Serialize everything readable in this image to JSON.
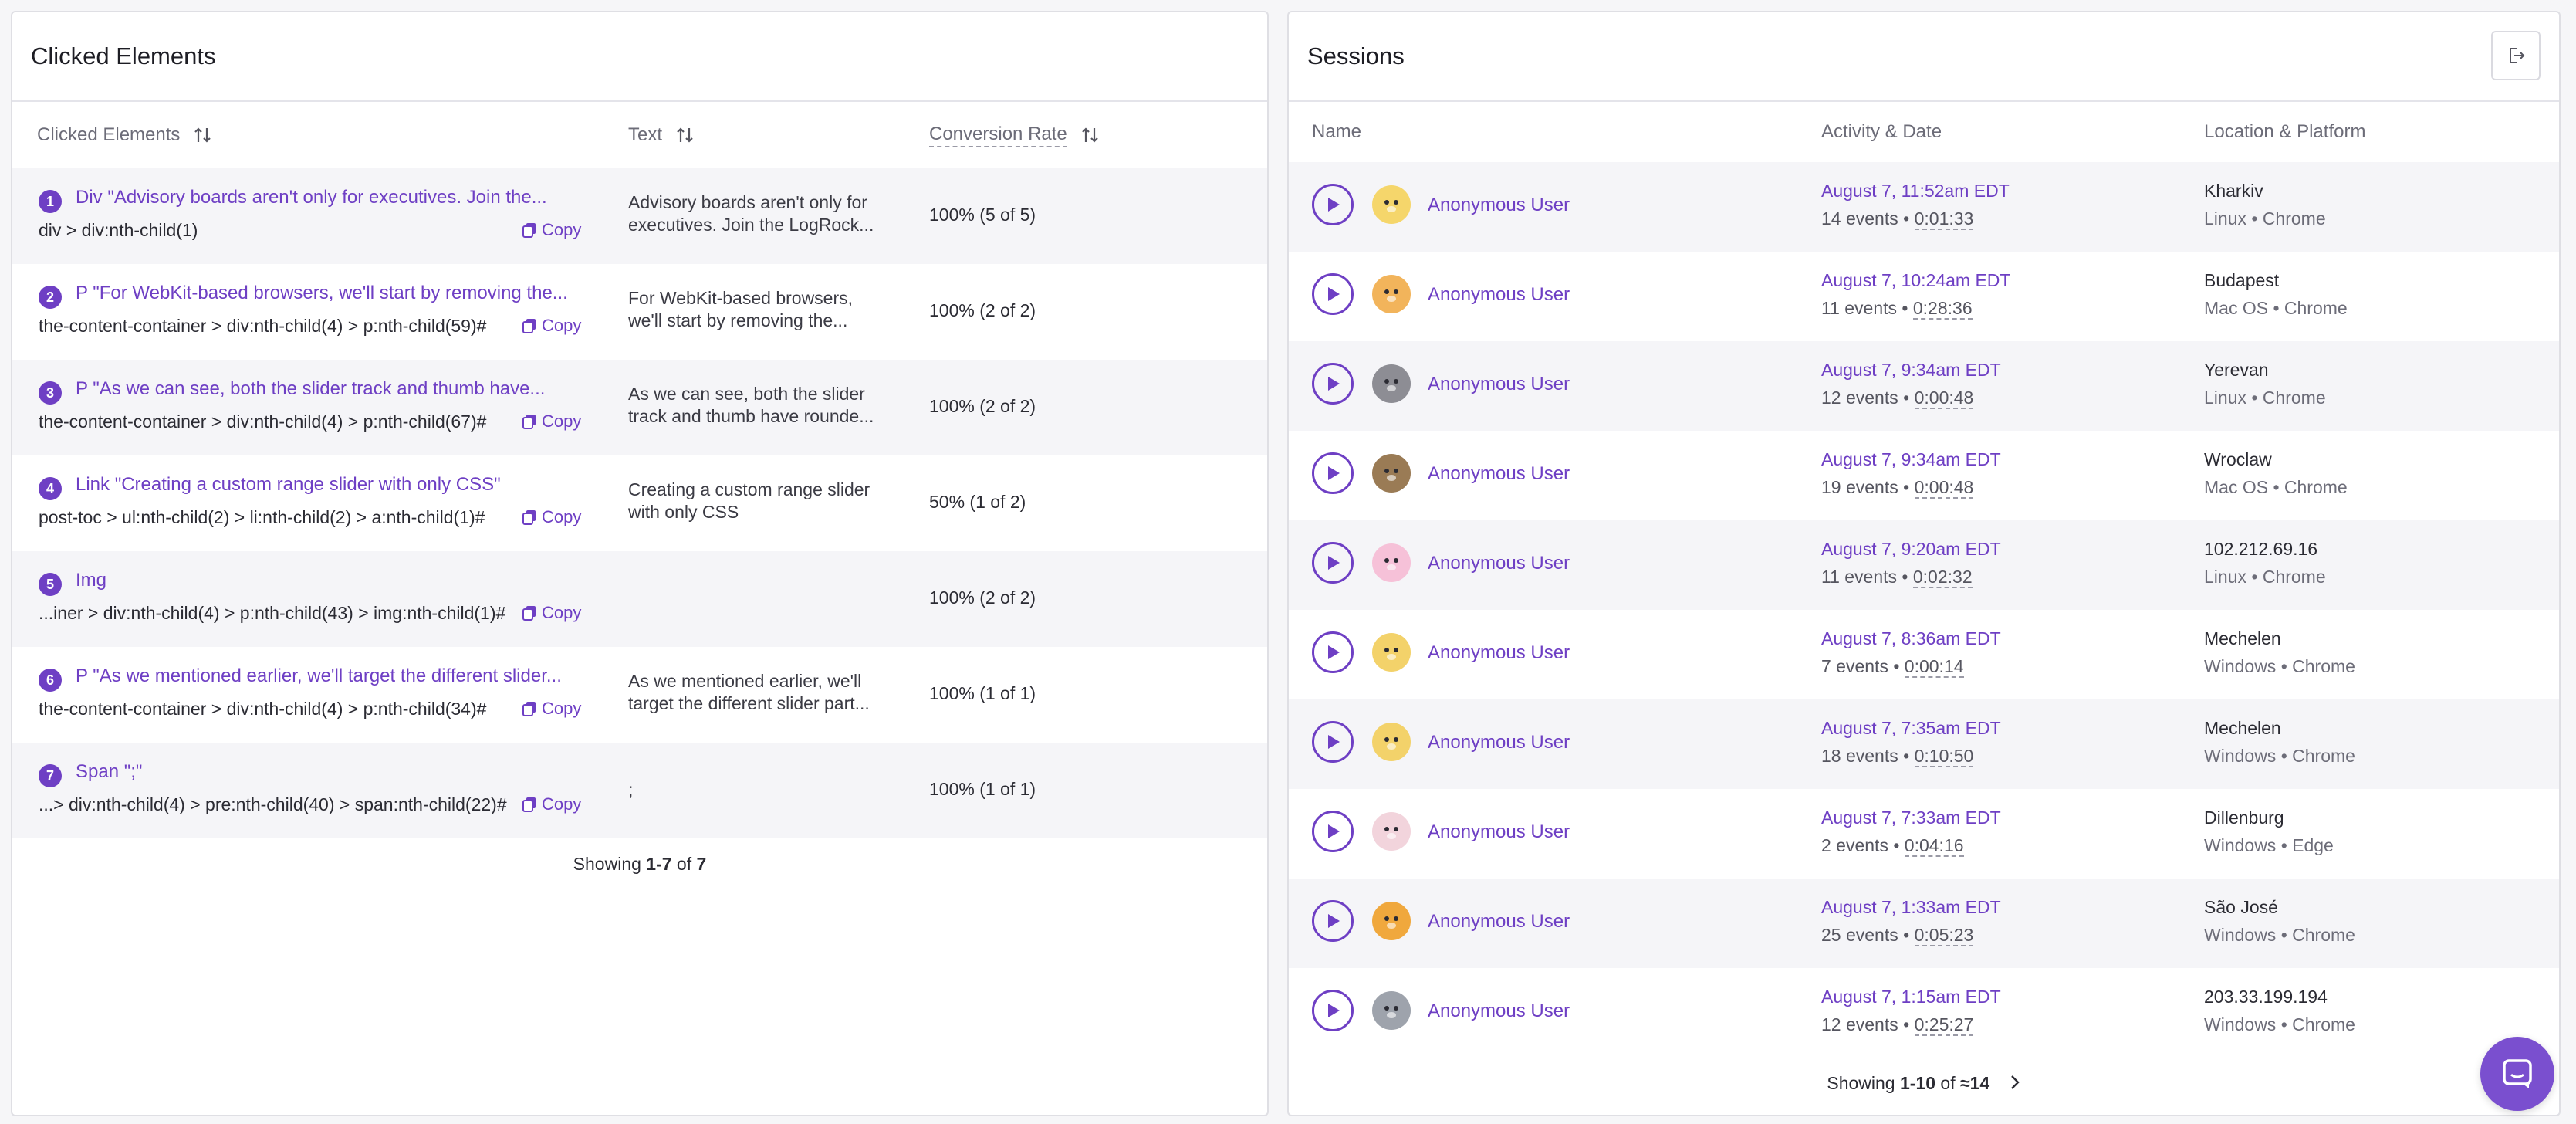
{
  "clicked_elements": {
    "title": "Clicked Elements",
    "columns": {
      "element": "Clicked Elements",
      "text": "Text",
      "conversion": "Conversion Rate"
    },
    "copy_label": "Copy",
    "rows": [
      {
        "num": "1",
        "name": "Div \"Advisory boards aren't only for executives. Join the...",
        "selector": "div > div:nth-child(1)",
        "text1": "Advisory boards aren't only for",
        "text2": "executives. Join the LogRock...",
        "conversion": "100% (5 of 5)"
      },
      {
        "num": "2",
        "name": "P \"For WebKit-based browsers, we'll start by removing the...",
        "selector": "the-content-container > div:nth-child(4) > p:nth-child(59)#",
        "text1": "For WebKit-based browsers,",
        "text2": "we'll start by removing the...",
        "conversion": "100% (2 of 2)"
      },
      {
        "num": "3",
        "name": "P \"As we can see, both the slider track and thumb have...",
        "selector": "the-content-container > div:nth-child(4) > p:nth-child(67)#",
        "text1": "As we can see, both the slider",
        "text2": "track and thumb have rounde...",
        "conversion": "100% (2 of 2)"
      },
      {
        "num": "4",
        "name": "Link \"Creating a custom range slider with only CSS\"",
        "selector": "post-toc > ul:nth-child(2) > li:nth-child(2) > a:nth-child(1)#",
        "text1": "Creating a custom range slider",
        "text2": "with only CSS",
        "conversion": "50% (1 of 2)"
      },
      {
        "num": "5",
        "name": "Img",
        "selector": "...iner > div:nth-child(4) > p:nth-child(43) > img:nth-child(1)#",
        "text1": "",
        "text2": "",
        "conversion": "100% (2 of 2)"
      },
      {
        "num": "6",
        "name": "P \"As we mentioned earlier, we'll target the different slider...",
        "selector": "the-content-container > div:nth-child(4) > p:nth-child(34)#",
        "text1": "As we mentioned earlier, we'll",
        "text2": "target the different slider part...",
        "conversion": "100% (1 of 1)"
      },
      {
        "num": "7",
        "name": "Span \";\"",
        "selector": "...> div:nth-child(4) > pre:nth-child(40) > span:nth-child(22)#",
        "text1": ";",
        "text2": "",
        "conversion": "100% (1 of 1)"
      }
    ],
    "showing": {
      "prefix": "Showing ",
      "range": "1-7",
      "of": " of ",
      "total": "7"
    }
  },
  "sessions": {
    "title": "Sessions",
    "columns": {
      "name": "Name",
      "activity": "Activity & Date",
      "location": "Location & Platform"
    },
    "rows": [
      {
        "user": "Anonymous User",
        "avatar": "yellow-bear",
        "avatar_color": "#f5d66b",
        "date": "August 7, 11:52am EDT",
        "events": "14 events",
        "duration": "0:01:33",
        "location": "Kharkiv",
        "platform": "Linux • Chrome"
      },
      {
        "user": "Anonymous User",
        "avatar": "cow",
        "avatar_color": "#f2b45b",
        "date": "August 7, 10:24am EDT",
        "events": "11 events",
        "duration": "0:28:36",
        "location": "Budapest",
        "platform": "Mac OS • Chrome"
      },
      {
        "user": "Anonymous User",
        "avatar": "wolf",
        "avatar_color": "#8d8d94",
        "date": "August 7, 9:34am EDT",
        "events": "12 events",
        "duration": "0:00:48",
        "location": "Yerevan",
        "platform": "Linux • Chrome"
      },
      {
        "user": "Anonymous User",
        "avatar": "monkey",
        "avatar_color": "#9a7b55",
        "date": "August 7, 9:34am EDT",
        "events": "19 events",
        "duration": "0:00:48",
        "location": "Wroclaw",
        "platform": "Mac OS • Chrome"
      },
      {
        "user": "Anonymous User",
        "avatar": "unicorn",
        "avatar_color": "#f6c1d8",
        "date": "August 7, 9:20am EDT",
        "events": "11 events",
        "duration": "0:02:32",
        "location": "102.212.69.16",
        "platform": "Linux • Chrome"
      },
      {
        "user": "Anonymous User",
        "avatar": "giraffe",
        "avatar_color": "#f3d26a",
        "date": "August 7, 8:36am EDT",
        "events": "7 events",
        "duration": "0:00:14",
        "location": "Mechelen",
        "platform": "Windows • Chrome"
      },
      {
        "user": "Anonymous User",
        "avatar": "giraffe",
        "avatar_color": "#f3d26a",
        "date": "August 7, 7:35am EDT",
        "events": "18 events",
        "duration": "0:10:50",
        "location": "Mechelen",
        "platform": "Windows • Chrome"
      },
      {
        "user": "Anonymous User",
        "avatar": "sheep",
        "avatar_color": "#f2d4dc",
        "date": "August 7, 7:33am EDT",
        "events": "2 events",
        "duration": "0:04:16",
        "location": "Dillenburg",
        "platform": "Windows • Edge"
      },
      {
        "user": "Anonymous User",
        "avatar": "tiger",
        "avatar_color": "#f0a83d",
        "date": "August 7, 1:33am EDT",
        "events": "25 events",
        "duration": "0:05:23",
        "location": "São José",
        "platform": "Windows • Chrome"
      },
      {
        "user": "Anonymous User",
        "avatar": "husky",
        "avatar_color": "#9ea3ac",
        "date": "August 7, 1:15am EDT",
        "events": "12 events",
        "duration": "0:25:27",
        "location": "203.33.199.194",
        "platform": "Windows • Chrome"
      }
    ],
    "showing": {
      "prefix": "Showing ",
      "range": "1-10",
      "of": " of ",
      "total": "≈14"
    }
  },
  "colors": {
    "accent": "#6e3fc4",
    "row_alt": "#f5f5f8",
    "chat": "#7a4fcf"
  }
}
